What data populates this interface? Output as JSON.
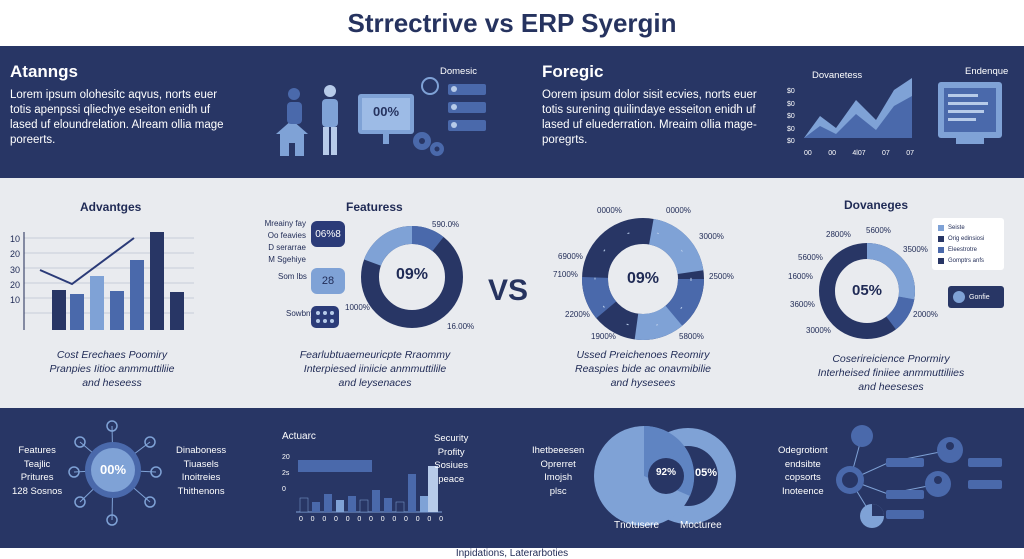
{
  "title": "Strrectrive vs ERP Syergin",
  "top_left": {
    "heading": "Atanngs",
    "body": [
      "Lorem ipsum olohesitc aqvus, norts euer",
      "totis apenpssi qliechye eseiton enidh uf",
      "lased uf eloundrelation. Alream ollia mage",
      "poreerts."
    ],
    "illus_label": "Domesic",
    "monitor_value": "00%"
  },
  "top_right": {
    "heading": "Foregic",
    "body": [
      "Oorem ipsum dolor sisit ecvies, norts euer",
      "totis surening quilindaye esseiton enidh uf",
      "lased uf eluederration. Mreaim ollia mage-",
      "poregrts."
    ],
    "chart_label": "Dovanetess",
    "chart_yticks": [
      "$0",
      "$0",
      "$0",
      "$0",
      "$0"
    ],
    "chart_xticks": [
      "00",
      "00",
      "4l07",
      "07",
      "07"
    ],
    "doc_label": "Endenque"
  },
  "middle": {
    "advantages": {
      "title": "Advantges",
      "yticks": [
        "10",
        "20",
        "30",
        "20",
        "10"
      ],
      "caption": [
        "Cost Erechaes Poomiry",
        "Pranpies Iitioc anmmuttiliie",
        "and heseess"
      ]
    },
    "features": {
      "title": "Featuress",
      "left_labels": [
        "Mreainy fay",
        "Oo feavies",
        "D serarrae",
        "M Sgehiye"
      ],
      "chip1": "06%8",
      "chip_label": "Som lbs",
      "chip2": "28",
      "chip3_label": "Sowbny",
      "donut_center": "09%",
      "donut_labels": [
        "590.0%",
        "1000%",
        "16.00%"
      ],
      "caption": [
        "Fearlubtuaemeuricpte Rraommy",
        "Interpiesed iiniicie anmmuttilile",
        "and leysenaces"
      ]
    },
    "vs": "VS",
    "center": {
      "donut_center": "09%",
      "labels": [
        "0000%",
        "0000%",
        "6900%",
        "7100%",
        "2200%",
        "1900%",
        "3000%",
        "2500%",
        "5800%"
      ],
      "caption": [
        "Ussed Preichenoes Reomiry",
        "Reaspies bide ac onavmibilie",
        "and hysesees"
      ]
    },
    "dovanges": {
      "title": "Dovaneges",
      "donut_center": "05%",
      "labels": [
        "2800%",
        "5600%",
        "5600%",
        "3500%",
        "1600%",
        "3600%",
        "2000%",
        "3000%"
      ],
      "legend": [
        "Seiste",
        "Orig edinsiosi",
        "Eleestrotre",
        "Gomptrs anfs"
      ],
      "badge": "Gonfie",
      "caption": [
        "Coserireicience Pnormiry",
        "Interheised finiiee anmmuttiliies",
        "and heeseses"
      ]
    }
  },
  "bottom": {
    "hub": {
      "center": "00%",
      "left_labels": [
        "Features",
        "Teajlic",
        "Pritures",
        "128 Sosnos"
      ],
      "right_labels": [
        "Dinaboness",
        "Tiuasels",
        "Inoitreies",
        "Thithenons"
      ]
    },
    "bars": {
      "title": "Actuarc",
      "yticks": [
        "20",
        "2s",
        "0"
      ],
      "xticks": [
        "0",
        "0",
        "0",
        "0",
        "0",
        "0",
        "0",
        "0",
        "0",
        "0",
        "0",
        "0",
        "0"
      ],
      "right_title": "Security",
      "right_labels": [
        "Profity",
        "Sosiues",
        "peace"
      ]
    },
    "pies": {
      "left_labels": [
        "Ihetbeeesen",
        "Oprerret",
        "Imojsh",
        "plsc"
      ],
      "left_value": "92%",
      "right_value": "05%",
      "left_name": "Tnotusere",
      "right_name": "Mocturee"
    },
    "network": {
      "labels": [
        "Odegrotiont",
        "endsibte",
        "copsorts",
        "Inoteence"
      ]
    }
  },
  "footer": "Inpidations, Laterarboties",
  "colors": {
    "navy": "#283665",
    "dark": "#2b3b78",
    "mid": "#4a69ab",
    "light": "#7fa2d6",
    "pale": "#b7cbe9"
  }
}
